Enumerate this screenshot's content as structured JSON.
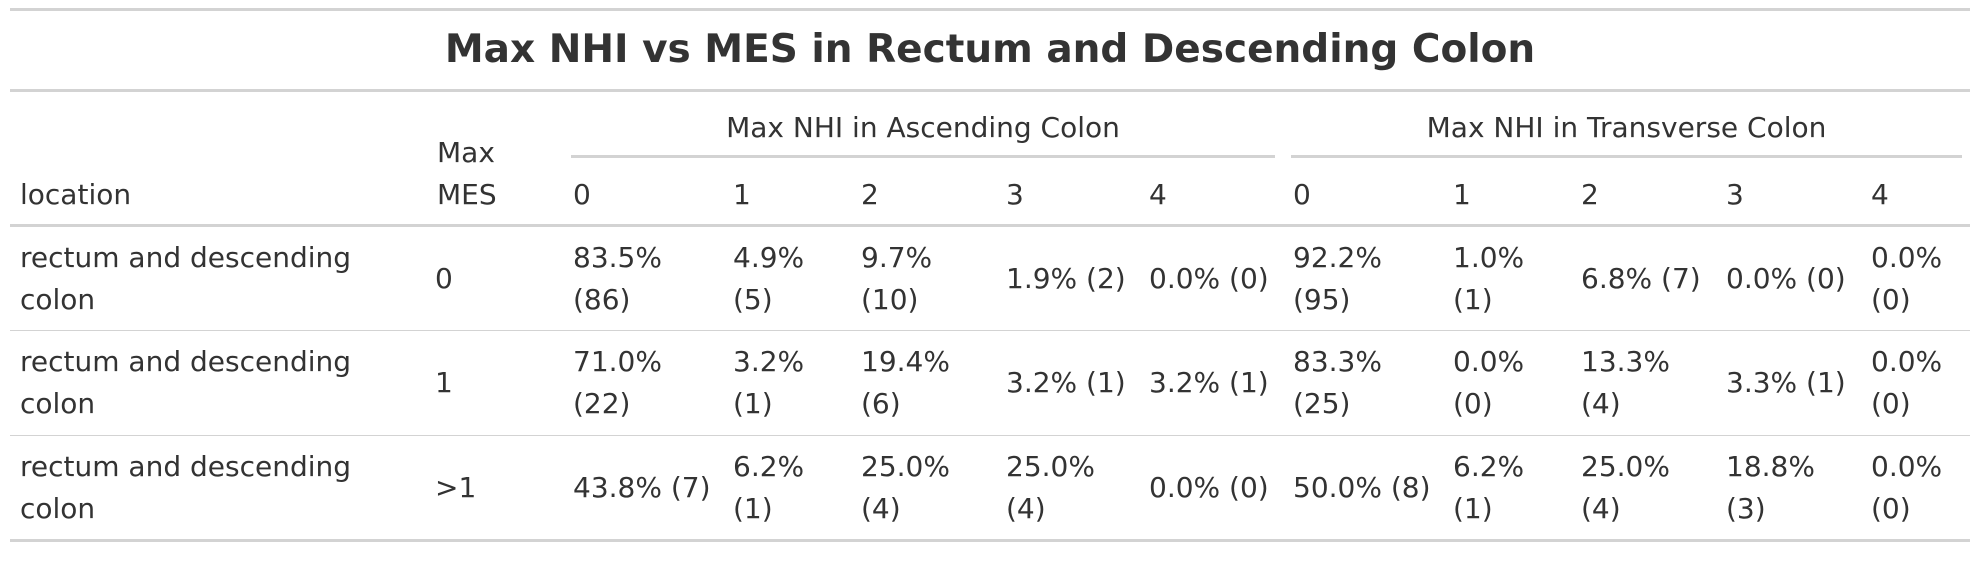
{
  "table": {
    "title": "Max NHI vs MES in Rectum and Descending Colon",
    "headers": {
      "location": "location",
      "max_mes": "Max MES",
      "spanner_ascending": "Max NHI in Ascending Colon",
      "spanner_transverse": "Max NHI in Transverse Colon",
      "asc": [
        "0",
        "1",
        "2",
        "3",
        "4"
      ],
      "trans": [
        "0",
        "1",
        "2",
        "3",
        "4"
      ]
    },
    "rows": [
      {
        "location": "rectum and descending colon",
        "mes": "0",
        "asc": [
          "83.5% (86)",
          "4.9% (5)",
          "9.7% (10)",
          "1.9% (2)",
          "0.0% (0)"
        ],
        "trans": [
          "92.2% (95)",
          "1.0% (1)",
          "6.8% (7)",
          "0.0% (0)",
          "0.0% (0)"
        ]
      },
      {
        "location": "rectum and descending colon",
        "mes": "1",
        "asc": [
          "71.0% (22)",
          "3.2% (1)",
          "19.4% (6)",
          "3.2% (1)",
          "3.2% (1)"
        ],
        "trans": [
          "83.3% (25)",
          "0.0% (0)",
          "13.3% (4)",
          "3.3% (1)",
          "0.0% (0)"
        ]
      },
      {
        "location": "rectum and descending colon",
        "mes": ">1",
        "asc": [
          "43.8% (7)",
          "6.2% (1)",
          "25.0% (4)",
          "25.0% (4)",
          "0.0% (0)"
        ],
        "trans": [
          "50.0% (8)",
          "6.2% (1)",
          "25.0% (4)",
          "18.8% (3)",
          "0.0% (0)"
        ]
      }
    ]
  }
}
